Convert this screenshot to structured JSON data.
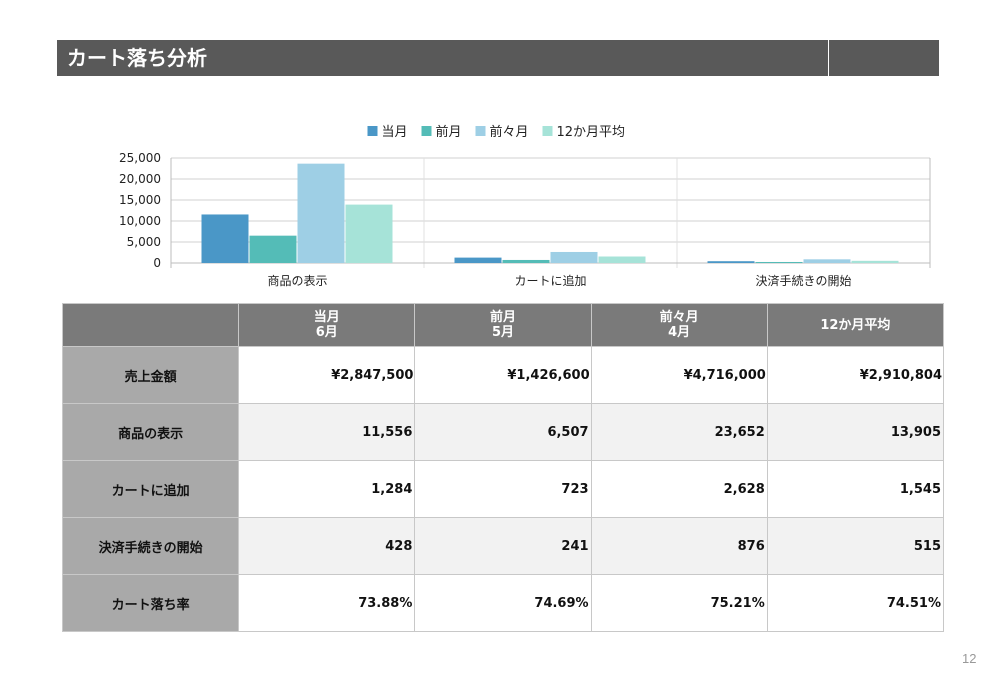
{
  "page": {
    "title": "カート落ち分析",
    "page_number": "12"
  },
  "chart_data": {
    "type": "bar",
    "categories": [
      "商品の表示",
      "カートに追加",
      "決済手続きの開始"
    ],
    "series": [
      {
        "name": "当月",
        "color": "#4A97C7",
        "values": [
          11556,
          1284,
          428
        ]
      },
      {
        "name": "前月",
        "color": "#54BCB7",
        "values": [
          6507,
          723,
          241
        ]
      },
      {
        "name": "前々月",
        "color": "#9ECFE5",
        "values": [
          23652,
          2628,
          876
        ]
      },
      {
        "name": "12か月平均",
        "color": "#A6E3D8",
        "values": [
          13905,
          1545,
          515
        ]
      }
    ],
    "yticks": [
      "0",
      "5,000",
      "10,000",
      "15,000",
      "20,000",
      "25,000"
    ],
    "ylim": [
      0,
      25000
    ],
    "grid": true,
    "legend": "top"
  },
  "table": {
    "headers": [
      {
        "line1": "当月",
        "line2": "6月"
      },
      {
        "line1": "前月",
        "line2": "5月"
      },
      {
        "line1": "前々月",
        "line2": "4月"
      },
      {
        "line1": "12か月平均",
        "line2": ""
      }
    ],
    "currency": "¥",
    "rows": [
      {
        "label": "売上金額",
        "values": [
          "2,847,500",
          "1,426,600",
          "4,716,000",
          "2,910,804"
        ]
      },
      {
        "label": "商品の表示",
        "values": [
          "11,556",
          "6,507",
          "23,652",
          "13,905"
        ]
      },
      {
        "label": "カートに追加",
        "values": [
          "1,284",
          "723",
          "2,628",
          "1,545"
        ]
      },
      {
        "label": "決済手続きの開始",
        "values": [
          "428",
          "241",
          "876",
          "515"
        ]
      },
      {
        "label": "カート落ち率",
        "values": [
          "73.88%",
          "74.69%",
          "75.21%",
          "74.51%"
        ]
      }
    ]
  }
}
